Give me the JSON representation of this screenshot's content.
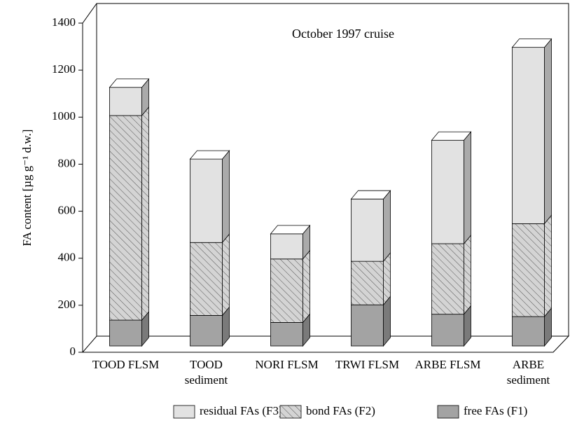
{
  "chart_data": {
    "type": "bar3d_stacked",
    "title": "October 1997 cruise",
    "y_label": "FA content  [µg g⁻¹ d.w.]",
    "categories": [
      "TOOD FLSM",
      "TOOD sediment",
      "NORI FLSM",
      "TRWI FLSM",
      "ARBE FLSM",
      "ARBE sediment"
    ],
    "series": [
      {
        "name": "free FAs (F1)",
        "color": "#a3a3a3",
        "values": [
          110,
          130,
          100,
          175,
          135,
          125
        ]
      },
      {
        "name": "bond FAs (F2)",
        "color": "#d4d4d4",
        "hatch": true,
        "values": [
          870,
          310,
          270,
          185,
          300,
          395
        ]
      },
      {
        "name": "residual FAs (F3)",
        "color": "#e2e2e2",
        "values": [
          120,
          355,
          107,
          265,
          440,
          750
        ]
      }
    ],
    "ylim": [
      0,
      1400
    ],
    "yticks": [
      0,
      200,
      400,
      600,
      800,
      1000,
      1200,
      1400
    ],
    "legend": "bottom"
  }
}
